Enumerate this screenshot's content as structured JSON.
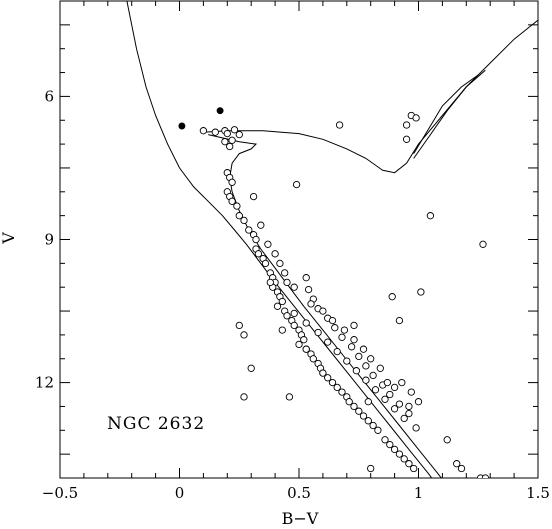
{
  "chart_data": {
    "type": "scatter",
    "title": "",
    "annotation": "NGC 2632",
    "xlabel": "B−V",
    "ylabel": "V",
    "xlim": [
      -0.5,
      1.5
    ],
    "ylim": [
      14.0,
      4.0
    ],
    "y_inverted": true,
    "xticks": [
      -0.5,
      0,
      0.5,
      1,
      1.5
    ],
    "xtick_labels": [
      "−0.5",
      "0",
      "0.5",
      "1",
      "1.5"
    ],
    "yticks": [
      6,
      9,
      12
    ],
    "ytick_labels": [
      "6",
      "9",
      "12"
    ],
    "grid": false,
    "legend": "none",
    "series": [
      {
        "marker": "open-circle",
        "points": [
          [
            0.1,
            6.72
          ],
          [
            0.15,
            6.75
          ],
          [
            0.19,
            6.72
          ],
          [
            0.2,
            6.78
          ],
          [
            0.23,
            6.7
          ],
          [
            0.25,
            6.8
          ],
          [
            0.19,
            6.95
          ],
          [
            0.22,
            6.92
          ],
          [
            0.21,
            7.05
          ],
          [
            0.2,
            7.6
          ],
          [
            0.21,
            7.7
          ],
          [
            0.22,
            7.8
          ],
          [
            0.2,
            8.0
          ],
          [
            0.21,
            8.1
          ],
          [
            0.22,
            8.2
          ],
          [
            0.24,
            8.3
          ],
          [
            0.25,
            8.5
          ],
          [
            0.27,
            8.6
          ],
          [
            0.29,
            8.8
          ],
          [
            0.31,
            8.9
          ],
          [
            0.32,
            9.0
          ],
          [
            0.32,
            9.2
          ],
          [
            0.33,
            9.3
          ],
          [
            0.35,
            9.4
          ],
          [
            0.36,
            9.5
          ],
          [
            0.38,
            9.7
          ],
          [
            0.39,
            9.8
          ],
          [
            0.4,
            9.9
          ],
          [
            0.39,
            10.0
          ],
          [
            0.41,
            10.1
          ],
          [
            0.42,
            10.2
          ],
          [
            0.43,
            10.3
          ],
          [
            0.41,
            10.4
          ],
          [
            0.44,
            10.5
          ],
          [
            0.45,
            10.6
          ],
          [
            0.47,
            10.7
          ],
          [
            0.48,
            10.8
          ],
          [
            0.5,
            10.9
          ],
          [
            0.51,
            11.0
          ],
          [
            0.52,
            11.1
          ],
          [
            0.5,
            11.2
          ],
          [
            0.53,
            11.3
          ],
          [
            0.55,
            11.4
          ],
          [
            0.56,
            11.5
          ],
          [
            0.58,
            11.6
          ],
          [
            0.59,
            11.7
          ],
          [
            0.6,
            11.8
          ],
          [
            0.62,
            11.9
          ],
          [
            0.64,
            12.0
          ],
          [
            0.66,
            12.1
          ],
          [
            0.68,
            12.2
          ],
          [
            0.7,
            12.3
          ],
          [
            0.71,
            12.4
          ],
          [
            0.73,
            12.5
          ],
          [
            0.75,
            12.6
          ],
          [
            0.77,
            12.7
          ],
          [
            0.79,
            12.8
          ],
          [
            0.81,
            12.9
          ],
          [
            0.83,
            13.0
          ],
          [
            0.86,
            13.2
          ],
          [
            0.88,
            13.3
          ],
          [
            0.9,
            13.4
          ],
          [
            0.92,
            13.5
          ],
          [
            0.94,
            13.6
          ],
          [
            0.96,
            13.7
          ],
          [
            0.98,
            13.8
          ],
          [
            0.45,
            9.9
          ],
          [
            0.54,
            10.05
          ],
          [
            0.56,
            10.25
          ],
          [
            0.58,
            10.45
          ],
          [
            0.62,
            10.65
          ],
          [
            0.65,
            10.85
          ],
          [
            0.68,
            11.05
          ],
          [
            0.72,
            11.25
          ],
          [
            0.75,
            11.45
          ],
          [
            0.78,
            11.65
          ],
          [
            0.81,
            11.85
          ],
          [
            0.85,
            12.05
          ],
          [
            0.88,
            12.25
          ],
          [
            0.92,
            12.45
          ],
          [
            0.96,
            12.65
          ],
          [
            0.48,
            10.55
          ],
          [
            0.53,
            10.75
          ],
          [
            0.58,
            10.95
          ],
          [
            0.62,
            11.15
          ],
          [
            0.66,
            11.35
          ],
          [
            0.7,
            11.55
          ],
          [
            0.74,
            11.75
          ],
          [
            0.78,
            11.95
          ],
          [
            0.82,
            12.15
          ],
          [
            0.86,
            12.35
          ],
          [
            0.9,
            12.55
          ],
          [
            0.94,
            12.75
          ],
          [
            0.99,
            12.95
          ],
          [
            0.55,
            10.35
          ],
          [
            0.6,
            10.5
          ],
          [
            0.64,
            10.7
          ],
          [
            0.69,
            10.9
          ],
          [
            0.73,
            11.1
          ],
          [
            0.77,
            11.3
          ],
          [
            0.8,
            11.5
          ],
          [
            0.84,
            11.7
          ],
          [
            0.31,
            8.1
          ],
          [
            0.34,
            8.7
          ],
          [
            0.37,
            9.1
          ],
          [
            0.4,
            9.3
          ],
          [
            0.42,
            9.5
          ],
          [
            0.44,
            9.7
          ],
          [
            0.49,
            7.85
          ],
          [
            0.67,
            6.6
          ],
          [
            0.97,
            6.4
          ],
          [
            0.99,
            6.45
          ],
          [
            0.95,
            6.6
          ],
          [
            0.95,
            6.9
          ],
          [
            1.05,
            8.5
          ],
          [
            1.27,
            9.1
          ],
          [
            1.01,
            10.1
          ],
          [
            0.89,
            10.2
          ],
          [
            0.92,
            10.7
          ],
          [
            0.38,
            9.9
          ],
          [
            0.53,
            9.8
          ],
          [
            0.48,
            10.0
          ],
          [
            0.25,
            10.8
          ],
          [
            0.27,
            11.0
          ],
          [
            0.43,
            10.9
          ],
          [
            0.53,
            11.3
          ],
          [
            0.6,
            11.8
          ],
          [
            0.73,
            10.8
          ],
          [
            0.3,
            11.7
          ],
          [
            0.27,
            12.3
          ],
          [
            0.46,
            12.3
          ],
          [
            0.79,
            12.4
          ],
          [
            0.8,
            13.8
          ],
          [
            1.12,
            13.2
          ],
          [
            1.16,
            13.7
          ],
          [
            1.18,
            13.8
          ],
          [
            1.26,
            14.0
          ],
          [
            1.28,
            14.0
          ],
          [
            0.87,
            12.0
          ],
          [
            0.9,
            12.1
          ],
          [
            0.93,
            12.0
          ],
          [
            0.97,
            12.2
          ],
          [
            1.0,
            12.4
          ],
          [
            0.96,
            12.5
          ]
        ]
      },
      {
        "marker": "filled-circle",
        "points": [
          [
            0.01,
            6.62
          ],
          [
            0.17,
            6.3
          ]
        ]
      }
    ],
    "curves": [
      {
        "name": "",
        "points": [
          [
            -0.25,
            3.2
          ],
          [
            -0.22,
            4.0
          ],
          [
            -0.18,
            5.0
          ],
          [
            -0.14,
            5.8
          ],
          [
            -0.1,
            6.4
          ],
          [
            -0.05,
            7.0
          ],
          [
            0.0,
            7.5
          ],
          [
            0.06,
            7.9
          ],
          [
            0.12,
            8.2
          ],
          [
            0.18,
            8.5
          ],
          [
            0.23,
            8.8
          ],
          [
            0.28,
            9.1
          ],
          [
            0.34,
            9.5
          ],
          [
            0.4,
            9.9
          ],
          [
            0.48,
            10.4
          ],
          [
            0.56,
            10.9
          ],
          [
            0.64,
            11.4
          ],
          [
            0.72,
            11.9
          ],
          [
            0.8,
            12.4
          ],
          [
            0.88,
            12.9
          ],
          [
            0.96,
            13.4
          ],
          [
            1.04,
            13.9
          ],
          [
            1.1,
            14.3
          ]
        ]
      },
      {
        "name": "",
        "points": [
          [
            0.1,
            6.75
          ],
          [
            0.2,
            6.72
          ],
          [
            0.35,
            6.72
          ],
          [
            0.5,
            6.78
          ],
          [
            0.6,
            6.9
          ],
          [
            0.7,
            7.1
          ],
          [
            0.78,
            7.3
          ],
          [
            0.85,
            7.55
          ],
          [
            0.9,
            7.6
          ],
          [
            0.95,
            7.4
          ],
          [
            1.0,
            7.0
          ],
          [
            1.1,
            6.4
          ],
          [
            1.2,
            5.8
          ],
          [
            1.3,
            5.3
          ],
          [
            1.4,
            4.8
          ],
          [
            1.5,
            4.4
          ]
        ]
      },
      {
        "name": "",
        "points": [
          [
            0.12,
            6.8
          ],
          [
            0.25,
            6.95
          ],
          [
            0.32,
            7.0
          ],
          [
            0.3,
            7.1
          ],
          [
            0.25,
            7.2
          ],
          [
            0.22,
            7.4
          ],
          [
            0.21,
            7.7
          ],
          [
            0.22,
            8.0
          ],
          [
            0.25,
            8.4
          ],
          [
            0.29,
            8.8
          ],
          [
            0.34,
            9.2
          ],
          [
            0.4,
            9.6
          ],
          [
            0.46,
            10.0
          ],
          [
            0.52,
            10.4
          ],
          [
            0.6,
            10.9
          ],
          [
            0.68,
            11.4
          ],
          [
            0.76,
            11.9
          ],
          [
            0.84,
            12.4
          ],
          [
            0.92,
            12.9
          ],
          [
            1.0,
            13.4
          ],
          [
            1.08,
            13.9
          ],
          [
            1.14,
            14.3
          ]
        ]
      },
      {
        "name": "",
        "points": [
          [
            0.98,
            7.3
          ],
          [
            1.05,
            6.8
          ],
          [
            1.12,
            6.3
          ],
          [
            1.2,
            5.8
          ],
          [
            1.28,
            5.45
          ]
        ]
      },
      {
        "name": "",
        "points": [
          [
            0.98,
            7.2
          ],
          [
            1.04,
            6.7
          ],
          [
            1.1,
            6.2
          ],
          [
            1.18,
            5.8
          ],
          [
            1.25,
            5.55
          ]
        ]
      }
    ]
  }
}
